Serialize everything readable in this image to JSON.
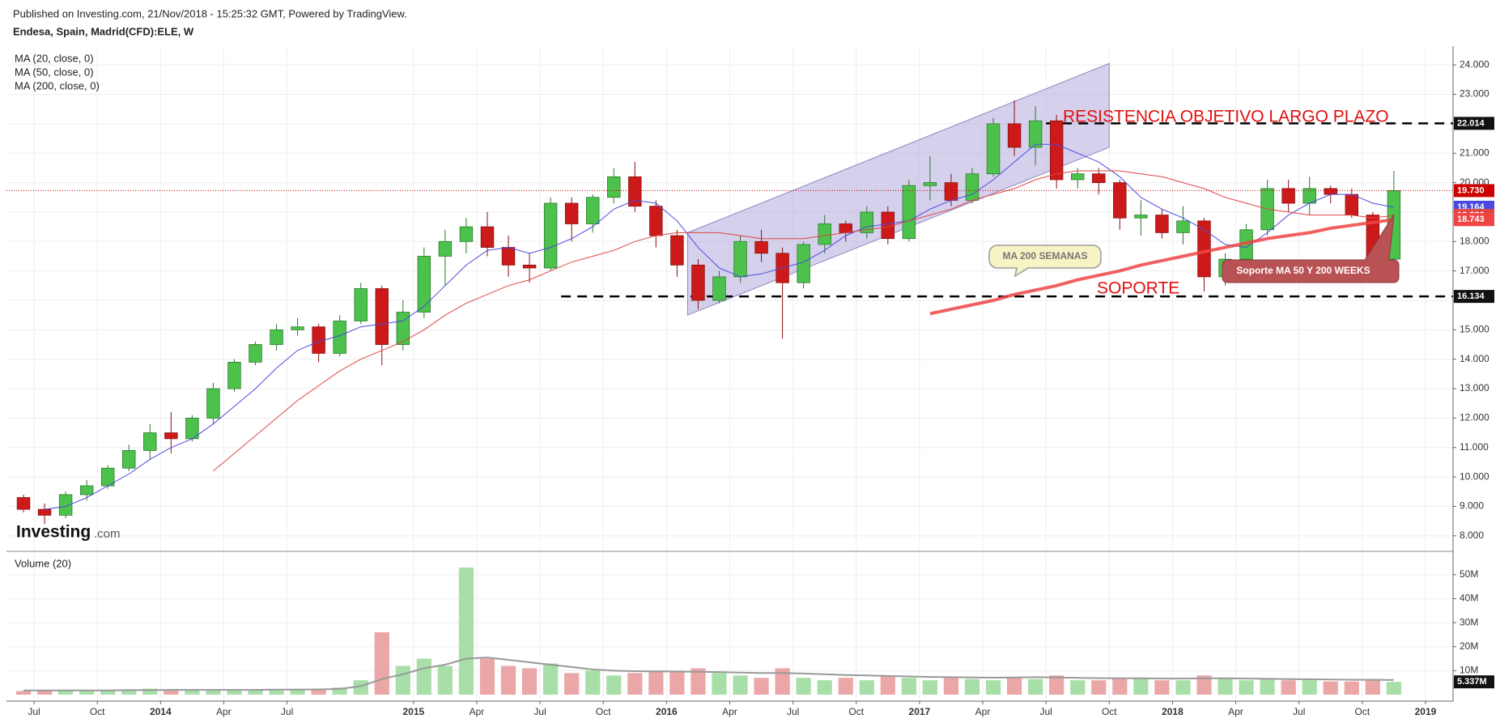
{
  "header": {
    "published": "Published on Investing.com, 21/Nov/2018 - 15:25:32 GMT, Powered by TradingView."
  },
  "logo": {
    "name": "Investing",
    "suffix": ".com"
  },
  "chart_data": {
    "type": "candlestick",
    "title": "Endesa, Spain, Madrid(CFD):ELE, W",
    "x": [
      "2013-06",
      "2013-07",
      "2013-08",
      "2013-09",
      "2013-10",
      "2013-11",
      "2013-12",
      "2014-01",
      "2014-02",
      "2014-03",
      "2014-04",
      "2014-05",
      "2014-06",
      "2014-07",
      "2014-08",
      "2014-09",
      "2014-10",
      "2014-11",
      "2014-12",
      "2015-01",
      "2015-02",
      "2015-03",
      "2015-04",
      "2015-05",
      "2015-06",
      "2015-07",
      "2015-08",
      "2015-09",
      "2015-10",
      "2015-11",
      "2015-12",
      "2016-01",
      "2016-02",
      "2016-03",
      "2016-04",
      "2016-05",
      "2016-06",
      "2016-07",
      "2016-08",
      "2016-09",
      "2016-10",
      "2016-11",
      "2016-12",
      "2017-01",
      "2017-02",
      "2017-03",
      "2017-04",
      "2017-05",
      "2017-06",
      "2017-07",
      "2017-08",
      "2017-09",
      "2017-10",
      "2017-11",
      "2017-12",
      "2018-01",
      "2018-02",
      "2018-03",
      "2018-04",
      "2018-05",
      "2018-06",
      "2018-07",
      "2018-08",
      "2018-09",
      "2018-10",
      "2018-11"
    ],
    "open": [
      9.3,
      8.9,
      8.7,
      9.4,
      9.7,
      10.3,
      10.9,
      11.5,
      11.3,
      12.0,
      13.0,
      13.9,
      14.5,
      15.0,
      15.1,
      14.2,
      15.3,
      16.4,
      14.5,
      15.6,
      17.5,
      18.0,
      18.5,
      17.8,
      17.2,
      17.1,
      19.3,
      18.6,
      19.5,
      20.2,
      19.2,
      18.2,
      17.2,
      16.0,
      16.8,
      18.0,
      17.6,
      16.6,
      17.9,
      18.6,
      18.3,
      19.0,
      18.1,
      19.9,
      20.0,
      19.4,
      20.3,
      22.0,
      21.2,
      22.1,
      20.1,
      20.3,
      20.0,
      18.8,
      18.9,
      18.3,
      18.7,
      16.8,
      17.4,
      18.4,
      19.8,
      19.3,
      19.8,
      19.6,
      18.9,
      17.4
    ],
    "high": [
      9.4,
      9.1,
      9.5,
      9.9,
      10.4,
      11.1,
      11.8,
      12.2,
      12.1,
      13.2,
      14.0,
      14.6,
      15.2,
      15.4,
      15.2,
      15.5,
      16.6,
      16.5,
      16.0,
      17.8,
      18.4,
      18.8,
      19.0,
      18.2,
      17.6,
      19.5,
      19.5,
      19.6,
      20.5,
      20.7,
      19.4,
      18.4,
      17.4,
      17.0,
      18.2,
      18.4,
      17.8,
      18.0,
      18.9,
      18.7,
      19.2,
      19.2,
      20.1,
      20.9,
      20.3,
      20.5,
      22.2,
      22.8,
      22.6,
      22.3,
      20.5,
      20.5,
      20.1,
      19.4,
      19.1,
      19.2,
      18.8,
      17.6,
      18.6,
      20.1,
      20.1,
      20.2,
      19.9,
      19.8,
      19.0,
      20.4
    ],
    "low": [
      8.8,
      8.4,
      8.6,
      9.2,
      9.6,
      10.2,
      10.6,
      10.8,
      11.2,
      11.8,
      12.9,
      13.8,
      14.3,
      14.8,
      13.9,
      14.1,
      15.2,
      13.8,
      14.3,
      15.4,
      16.5,
      17.6,
      17.5,
      16.8,
      16.6,
      17.0,
      18.0,
      18.3,
      19.3,
      19.0,
      17.8,
      16.8,
      15.7,
      15.9,
      16.6,
      17.3,
      14.7,
      16.4,
      17.6,
      18.0,
      18.1,
      17.9,
      18.0,
      19.4,
      19.2,
      19.3,
      20.2,
      20.9,
      20.6,
      19.8,
      19.8,
      19.6,
      18.4,
      18.2,
      18.1,
      17.9,
      16.3,
      16.5,
      17.2,
      18.2,
      19.0,
      18.9,
      19.3,
      18.8,
      17.1,
      17.3
    ],
    "close": [
      8.9,
      8.7,
      9.4,
      9.7,
      10.3,
      10.9,
      11.5,
      11.3,
      12.0,
      13.0,
      13.9,
      14.5,
      15.0,
      15.1,
      14.2,
      15.3,
      16.4,
      14.5,
      15.6,
      17.5,
      18.0,
      18.5,
      17.8,
      17.2,
      17.1,
      19.3,
      18.6,
      19.5,
      20.2,
      19.2,
      18.2,
      17.2,
      16.0,
      16.8,
      18.0,
      17.6,
      16.6,
      17.9,
      18.6,
      18.3,
      19.0,
      18.1,
      19.9,
      20.0,
      19.4,
      20.3,
      22.0,
      21.2,
      22.1,
      20.1,
      20.3,
      20.0,
      18.8,
      18.9,
      18.3,
      18.7,
      16.8,
      17.4,
      18.4,
      19.8,
      19.3,
      19.8,
      19.6,
      18.9,
      17.4,
      19.73
    ],
    "close_last_label": "19.730",
    "up_color": "#4cc24c",
    "down_color": "#cc1a1a",
    "price_line_color": "#cc0000",
    "series": [
      {
        "name": "MA (20, close, 0)",
        "color": "#4a4ae0",
        "width": 1,
        "values": [
          null,
          8.9,
          9.0,
          9.3,
          9.7,
          10.1,
          10.6,
          11.0,
          11.3,
          11.8,
          12.4,
          13.0,
          13.7,
          14.3,
          14.6,
          14.8,
          15.1,
          15.2,
          15.3,
          15.8,
          16.5,
          17.2,
          17.7,
          17.8,
          17.6,
          17.8,
          18.1,
          18.5,
          19.1,
          19.4,
          19.3,
          18.7,
          17.8,
          17.1,
          16.8,
          16.9,
          17.1,
          17.3,
          17.7,
          18.2,
          18.5,
          18.6,
          18.7,
          19.1,
          19.4,
          19.6,
          20.1,
          20.7,
          21.3,
          21.3,
          21.0,
          20.7,
          20.2,
          19.5,
          19.1,
          18.8,
          18.4,
          17.9,
          17.8,
          18.3,
          18.9,
          19.3,
          19.6,
          19.6,
          19.3,
          19.164
        ]
      },
      {
        "name": "MA (50, close, 0)",
        "color": "#e04545",
        "width": 1,
        "values": [
          null,
          null,
          null,
          null,
          null,
          null,
          null,
          null,
          null,
          10.2,
          10.8,
          11.4,
          12.0,
          12.6,
          13.1,
          13.6,
          14.0,
          14.3,
          14.6,
          15.0,
          15.5,
          15.9,
          16.2,
          16.5,
          16.7,
          17.0,
          17.3,
          17.5,
          17.7,
          18.0,
          18.2,
          18.3,
          18.3,
          18.3,
          18.2,
          18.1,
          18.1,
          18.1,
          18.2,
          18.3,
          18.4,
          18.5,
          18.7,
          18.9,
          19.1,
          19.4,
          19.6,
          19.8,
          20.1,
          20.3,
          20.4,
          20.4,
          20.4,
          20.3,
          20.2,
          20.0,
          19.8,
          19.5,
          19.3,
          19.1,
          19.0,
          18.9,
          18.9,
          18.9,
          18.8,
          18.886
        ]
      },
      {
        "name": "MA (200, close, 0)",
        "color": "#ee4444",
        "width": 4,
        "values": [
          null,
          null,
          null,
          null,
          null,
          null,
          null,
          null,
          null,
          null,
          null,
          null,
          null,
          null,
          null,
          null,
          null,
          null,
          null,
          null,
          null,
          null,
          null,
          null,
          null,
          null,
          null,
          null,
          null,
          null,
          null,
          null,
          null,
          null,
          null,
          null,
          null,
          null,
          null,
          null,
          null,
          null,
          null,
          15.55,
          15.7,
          15.85,
          16.0,
          16.2,
          16.35,
          16.5,
          16.7,
          16.85,
          17.0,
          17.2,
          17.35,
          17.5,
          17.65,
          17.8,
          17.95,
          18.1,
          18.2,
          18.3,
          18.45,
          18.55,
          18.65,
          18.743
        ]
      }
    ],
    "ylim": [
      7.5,
      24.5
    ],
    "yticks": [
      {
        "value": 8,
        "label": "8.000"
      },
      {
        "value": 9,
        "label": "9.000"
      },
      {
        "value": 10,
        "label": "10.000"
      },
      {
        "value": 11,
        "label": "11.000"
      },
      {
        "value": 12,
        "label": "12.000"
      },
      {
        "value": 13,
        "label": "13.000"
      },
      {
        "value": 14,
        "label": "14.000"
      },
      {
        "value": 15,
        "label": "15.000"
      },
      {
        "value": 16,
        "label": "16.000"
      },
      {
        "value": 17,
        "label": "17.000"
      },
      {
        "value": 18,
        "label": "18.000"
      },
      {
        "value": 19,
        "label": "19.000"
      },
      {
        "value": 20,
        "label": "20.000"
      },
      {
        "value": 21,
        "label": "21.000"
      },
      {
        "value": 22,
        "label": "22.000"
      },
      {
        "value": 23,
        "label": "23.000"
      },
      {
        "value": 24,
        "label": "24.000"
      }
    ],
    "xlim": [
      "2013-06",
      "2019-02"
    ],
    "xticks": [
      {
        "value": "2013-07",
        "label": "Jul"
      },
      {
        "value": "2013-10",
        "label": "Oct"
      },
      {
        "value": "2014-01",
        "label": "2014"
      },
      {
        "value": "2014-04",
        "label": "Apr"
      },
      {
        "value": "2014-07",
        "label": "Jul"
      },
      {
        "value": "2015-01",
        "label": "2015"
      },
      {
        "value": "2015-04",
        "label": "Apr"
      },
      {
        "value": "2015-07",
        "label": "Jul"
      },
      {
        "value": "2015-10",
        "label": "Oct"
      },
      {
        "value": "2016-01",
        "label": "2016"
      },
      {
        "value": "2016-04",
        "label": "Apr"
      },
      {
        "value": "2016-07",
        "label": "Jul"
      },
      {
        "value": "2016-10",
        "label": "Oct"
      },
      {
        "value": "2017-01",
        "label": "2017"
      },
      {
        "value": "2017-04",
        "label": "Apr"
      },
      {
        "value": "2017-07",
        "label": "Jul"
      },
      {
        "value": "2017-10",
        "label": "Oct"
      },
      {
        "value": "2018-01",
        "label": "2018"
      },
      {
        "value": "2018-04",
        "label": "Apr"
      },
      {
        "value": "2018-07",
        "label": "Jul"
      },
      {
        "value": "2018-10",
        "label": "Oct"
      },
      {
        "value": "2019-01",
        "label": "2019"
      }
    ],
    "grid": true,
    "levels": [
      {
        "value": 22.014,
        "from": "2017-07",
        "color": "#000000"
      },
      {
        "value": 16.134,
        "from": "2015-08",
        "color": "#000000"
      }
    ],
    "channel": {
      "color": "#b9b0e0",
      "x": [
        "2016-02",
        "2017-10"
      ],
      "lower": [
        15.5,
        21.2
      ],
      "upper": [
        18.3,
        24.05
      ]
    },
    "annotations": [
      "RESISTENCIA OBJETIVO LARGO PLAZO",
      "SOPORTE",
      "MA 200 SEMANAS",
      "Soporte MA 50 Y 200 WEEKS"
    ],
    "volume": {
      "title": "Volume (20)",
      "values": [
        1.5,
        1.8,
        1.6,
        2.0,
        1.8,
        1.7,
        2.5,
        2.0,
        2.2,
        1.9,
        1.8,
        2.0,
        2.3,
        2.0,
        2.5,
        3.0,
        6.0,
        26.0,
        12.0,
        15.0,
        12.0,
        53.0,
        15.0,
        12.0,
        11.0,
        13.0,
        9.0,
        10.0,
        8.0,
        9.0,
        10.0,
        10.0,
        11.0,
        9.0,
        8.0,
        7.0,
        11.0,
        7.0,
        6.0,
        7.0,
        6.0,
        8.0,
        7.0,
        6.0,
        7.0,
        6.5,
        6.0,
        7.0,
        6.5,
        8.0,
        6.0,
        6.0,
        7.0,
        7.0,
        6.0,
        6.0,
        8.0,
        7.0,
        6.0,
        6.5,
        6.0,
        6.0,
        5.5,
        5.5,
        6.5,
        5.337
      ],
      "ma": [
        1.8,
        1.8,
        1.8,
        1.8,
        1.8,
        1.9,
        1.9,
        2.0,
        2.0,
        2.0,
        2.0,
        2.0,
        2.1,
        2.1,
        2.2,
        2.4,
        3.5,
        6.5,
        8.5,
        11.0,
        12.5,
        15.0,
        15.5,
        14.5,
        13.5,
        12.5,
        11.5,
        10.5,
        10.0,
        9.8,
        9.7,
        9.6,
        9.5,
        9.4,
        9.2,
        9.0,
        9.0,
        8.8,
        8.5,
        8.2,
        8.0,
        7.8,
        7.6,
        7.4,
        7.3,
        7.2,
        7.1,
        7.2,
        7.3,
        7.2,
        7.0,
        6.9,
        6.8,
        6.8,
        6.7,
        6.7,
        6.8,
        6.8,
        6.7,
        6.6,
        6.5,
        6.4,
        6.3,
        6.2,
        6.2,
        6.1
      ],
      "ma_color": "#999999",
      "up_color": "#a8dfa8",
      "down_color": "#eba7a7",
      "ylim": [
        0,
        55
      ],
      "yticks": [
        {
          "value": 10,
          "label": "10M"
        },
        {
          "value": 20,
          "label": "20M"
        },
        {
          "value": 30,
          "label": "30M"
        },
        {
          "value": 40,
          "label": "40M"
        },
        {
          "value": 50,
          "label": "50M"
        }
      ],
      "last_label": "5.337M"
    }
  }
}
